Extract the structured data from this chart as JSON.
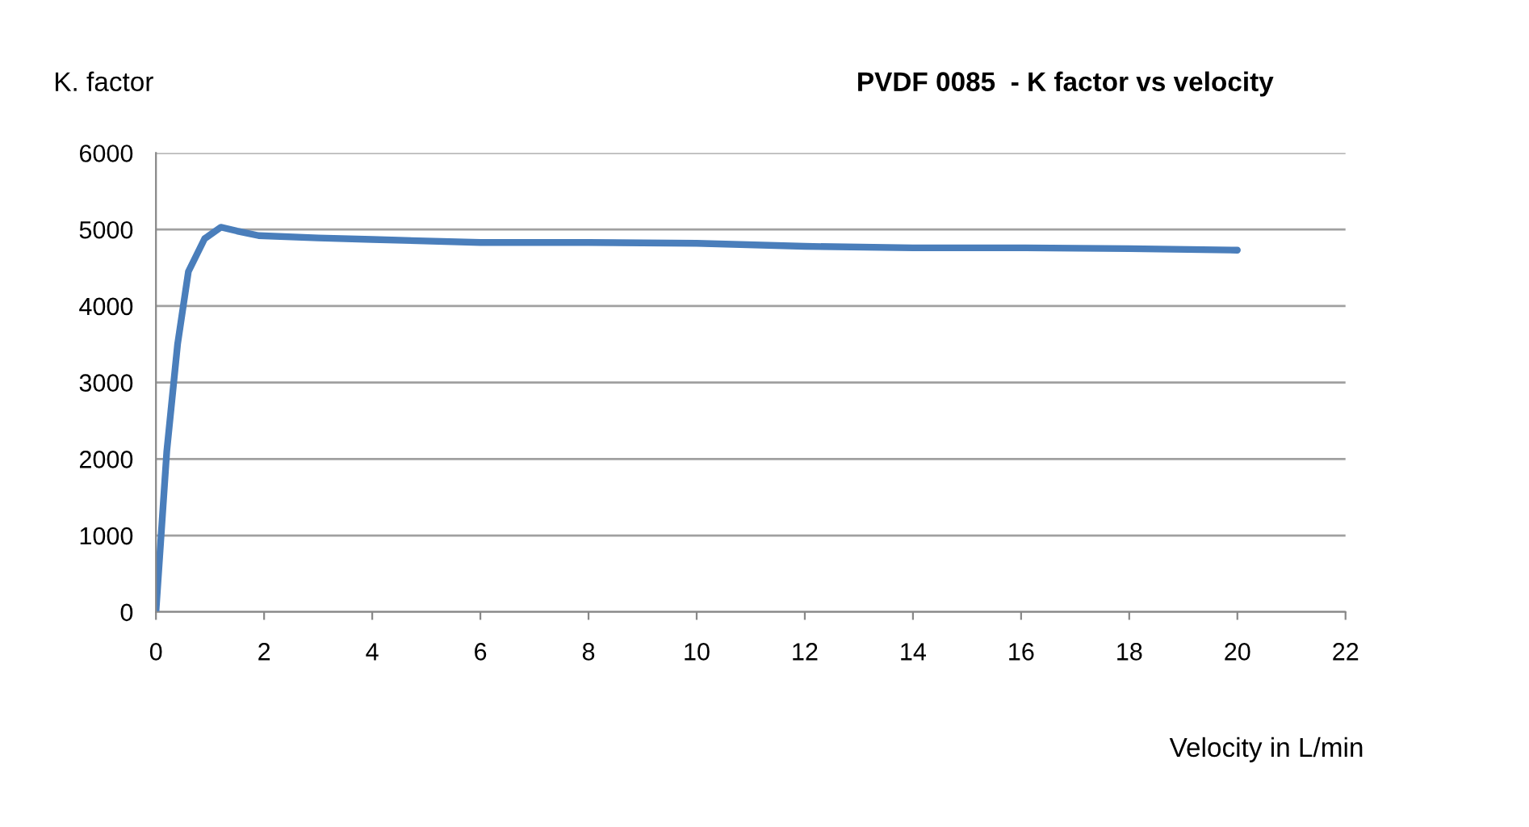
{
  "chart_data": {
    "type": "line",
    "title": "PVDF 0085  - K factor vs velocity",
    "ylabel": "K. factor",
    "xlabel": "Velocity in L/min",
    "x": [
      0,
      0.2,
      0.4,
      0.6,
      0.9,
      1.2,
      1.5,
      1.9,
      3,
      4,
      6,
      8,
      10,
      12,
      14,
      16,
      18,
      20
    ],
    "series": [
      {
        "color": "#4a7ebb",
        "values": [
          0,
          2100,
          3500,
          4450,
          4880,
          5030,
          4980,
          4920,
          4890,
          4870,
          4830,
          4830,
          4820,
          4780,
          4760,
          4760,
          4750,
          4730
        ]
      }
    ],
    "xlim": [
      0,
      22
    ],
    "xticks": [
      0,
      2,
      4,
      6,
      8,
      10,
      12,
      14,
      16,
      18,
      20,
      22
    ],
    "ylim": [
      0,
      6000
    ],
    "yticks": [
      0,
      1000,
      2000,
      3000,
      4000,
      5000,
      6000
    ],
    "grid": "y",
    "marker": "none",
    "line_style": "solid"
  }
}
